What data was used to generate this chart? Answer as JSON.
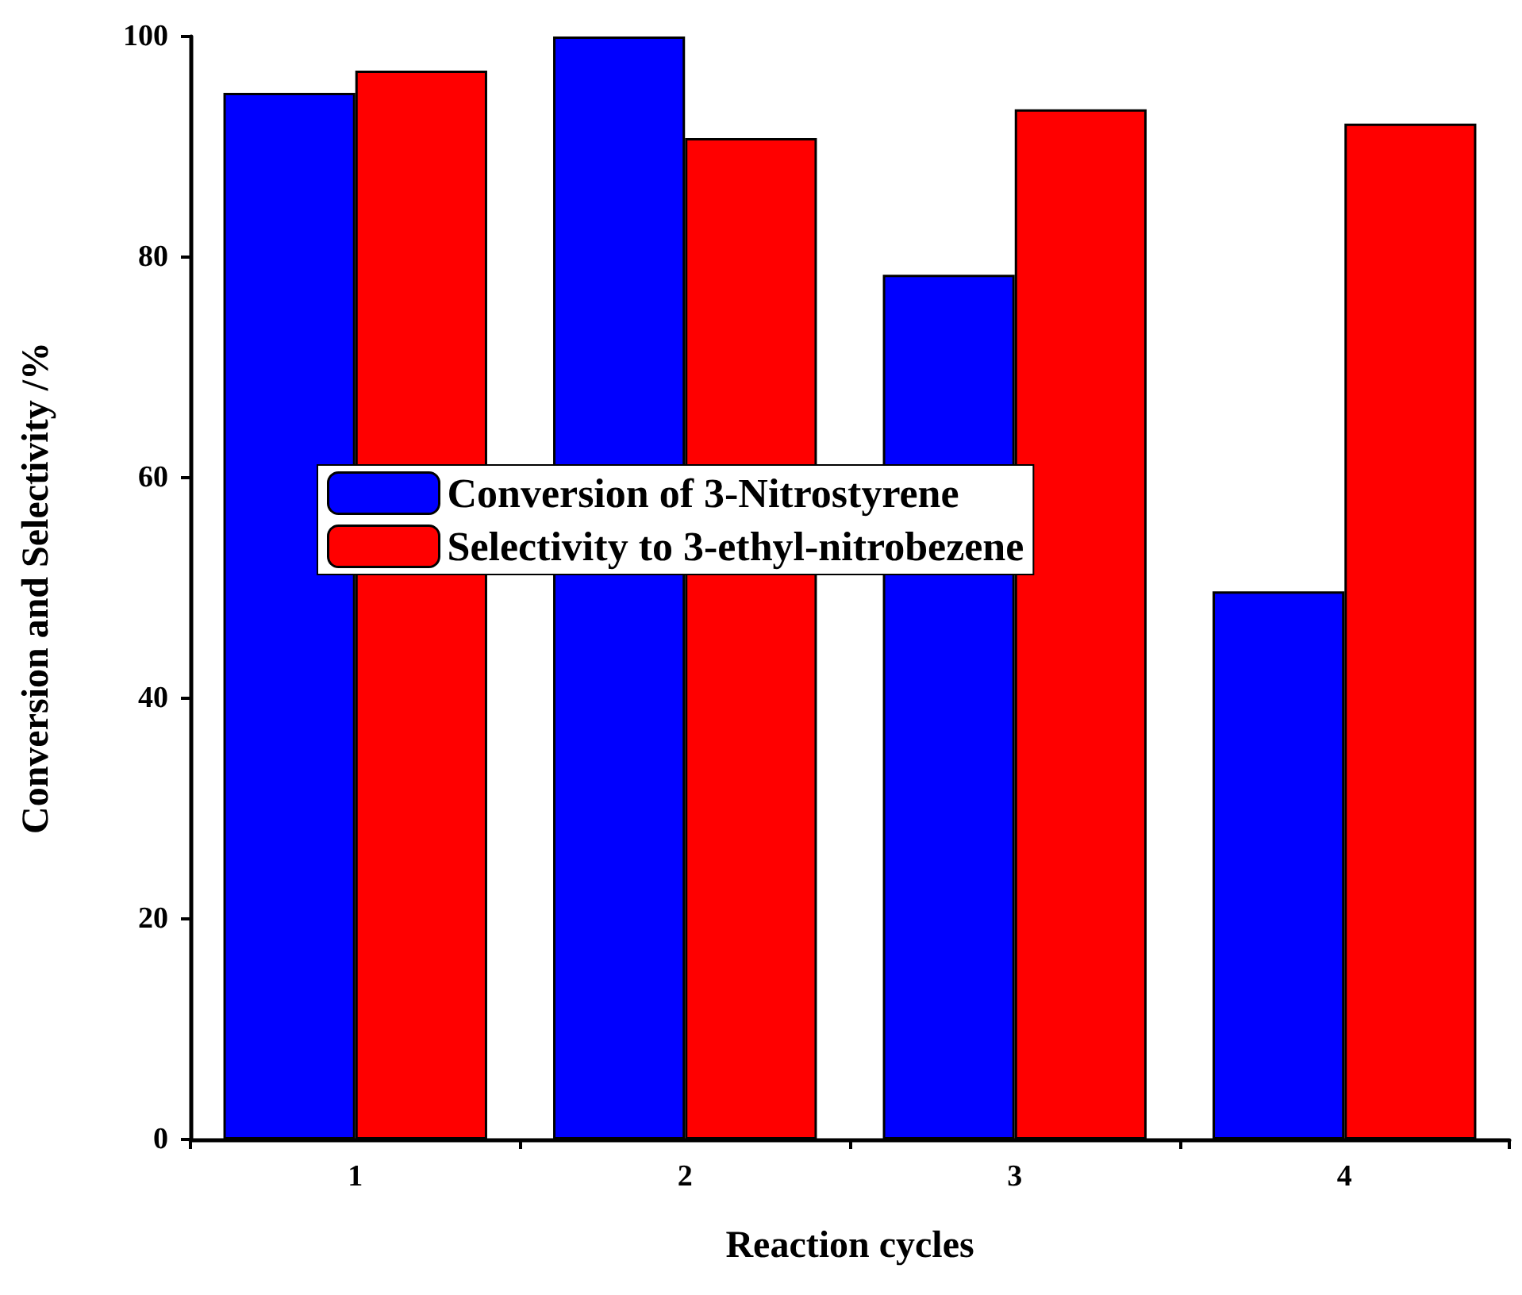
{
  "chart_data": {
    "type": "bar",
    "xlabel": "Reaction cycles",
    "ylabel": "Conversion and Selectivity /%",
    "categories": [
      "1",
      "2",
      "3",
      "4"
    ],
    "series": [
      {
        "name": "Conversion of 3-Nitrostyrene",
        "color": "#0000ff",
        "values": [
          94.9,
          100,
          78.4,
          49.7
        ]
      },
      {
        "name": "Selectivity to 3-ethyl-nitrobezene",
        "color": "#ff0000",
        "values": [
          96.9,
          90.8,
          93.4,
          92.1
        ]
      }
    ],
    "ylim": [
      0,
      100
    ],
    "yticks": [
      0,
      20,
      40,
      60,
      80,
      100
    ],
    "grid": false,
    "legend": "left"
  }
}
